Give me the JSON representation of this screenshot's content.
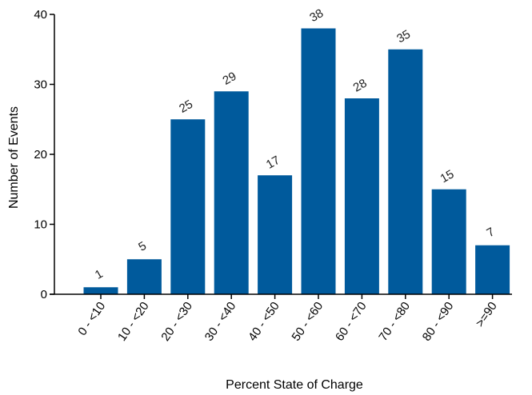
{
  "chart_data": {
    "type": "bar",
    "title": "",
    "xlabel": "Percent State of Charge",
    "ylabel": "Number of Events",
    "categories": [
      "0 - <10",
      "10 - <20",
      "20 - <30",
      "30 - <40",
      "40 - <50",
      "50 - <60",
      "60 - <70",
      "70 - <80",
      "80 - <90",
      ">=90"
    ],
    "values": [
      1,
      5,
      25,
      29,
      17,
      38,
      28,
      35,
      15,
      7
    ],
    "data_labels": [
      "1",
      "5",
      "25",
      "29",
      "17",
      "38",
      "28",
      "35",
      "15",
      "7"
    ],
    "ylim": [
      0,
      40
    ],
    "yticks": [
      0,
      10,
      20,
      30,
      40
    ],
    "ytick_labels": [
      "0",
      "10",
      "20",
      "30",
      "40"
    ],
    "grid": false,
    "legend": "none",
    "bar_color": "#005a9c",
    "axis_color": "#000000"
  }
}
